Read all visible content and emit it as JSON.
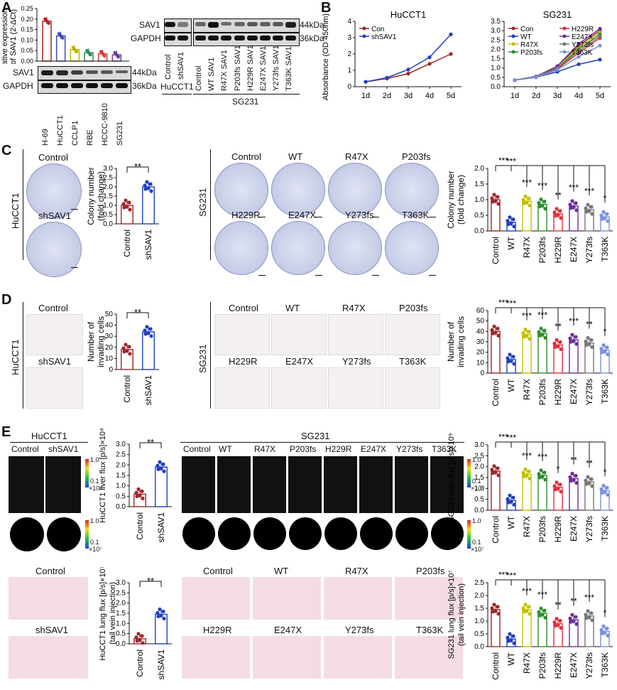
{
  "panels": {
    "A": "A",
    "B": "B",
    "C": "C",
    "D": "D",
    "E": "E"
  },
  "panelA": {
    "ylabel1": "Relative expression",
    "ylabel2": "of SAV1 (2",
    "ylabel_sup": "-ΔCt",
    "ylabel_end": ")",
    "yticks": [
      "0.00",
      "0.05",
      "0.10",
      "0.15",
      "0.20",
      "0.25"
    ],
    "cell_lines": [
      "H-69",
      "HuCCT1",
      "CCLP1",
      "RBE",
      "HCCC-9810",
      "SG231"
    ],
    "bars": [
      0.19,
      0.12,
      0.055,
      0.04,
      0.035,
      0.03
    ],
    "bar_colors": [
      "#b22222",
      "#3a4fb5",
      "#b8b800",
      "#2e8b57",
      "#d23a3a",
      "#6a3d9a"
    ],
    "blot_rows": [
      "SAV1",
      "GAPDH"
    ],
    "blot_kda": [
      "44kDa",
      "36kDa"
    ],
    "blot2_lanes_left": [
      "Control",
      "shSAV1"
    ],
    "blot2_group_left": "HuCCT1",
    "blot2_lanes_right": [
      "Control",
      "WT SAV1",
      "R47X SAV1",
      "P203fs SAV1",
      "H229R SAV1",
      "E247X SAV1",
      "Y273fs SAV1",
      "T363K SAV1"
    ],
    "blot2_group_right": "SG231"
  },
  "panelB": {
    "ylabel": "Absorbance (OD 450nm)",
    "hucct1": {
      "title": "HuCCT1",
      "x": [
        "1d",
        "2d",
        "3d",
        "4d",
        "5d"
      ],
      "yticks": [
        "0",
        "1",
        "2",
        "3",
        "4"
      ],
      "series": [
        {
          "name": "Con",
          "color": "#a0252a",
          "values": [
            0.3,
            0.5,
            0.8,
            1.4,
            2.0
          ]
        },
        {
          "name": "shSAV1",
          "color": "#1f3fbf",
          "values": [
            0.3,
            0.55,
            1.05,
            1.8,
            3.2
          ]
        }
      ]
    },
    "sg231": {
      "title": "SG231",
      "x": [
        "1d",
        "2d",
        "3d",
        "4d",
        "5d"
      ],
      "yticks": [
        "0.0",
        "0.5",
        "1.0",
        "1.5",
        "2.0",
        "2.5",
        "3.0",
        "3.5"
      ],
      "series": [
        {
          "name": "Con",
          "color": "#a0252a",
          "values": [
            0.35,
            0.55,
            1.1,
            2.2,
            3.0
          ]
        },
        {
          "name": "WT",
          "color": "#1f3fbf",
          "values": [
            0.35,
            0.5,
            0.8,
            1.2,
            1.45
          ]
        },
        {
          "name": "R47X",
          "color": "#c0c000",
          "values": [
            0.35,
            0.55,
            1.05,
            2.1,
            2.9
          ]
        },
        {
          "name": "P203fs",
          "color": "#2e8b2e",
          "values": [
            0.35,
            0.55,
            1.0,
            2.0,
            2.8
          ]
        },
        {
          "name": "H229R",
          "color": "#e0303a",
          "values": [
            0.35,
            0.55,
            0.95,
            1.8,
            2.6
          ]
        },
        {
          "name": "E247X",
          "color": "#6a2d9a",
          "values": [
            0.35,
            0.55,
            1.1,
            2.3,
            3.1
          ]
        },
        {
          "name": "Y273fs",
          "color": "#777777",
          "values": [
            0.35,
            0.55,
            1.0,
            1.9,
            2.7
          ]
        },
        {
          "name": "T363K",
          "color": "#7a8fe0",
          "values": [
            0.35,
            0.5,
            0.9,
            1.6,
            2.2
          ]
        }
      ]
    }
  },
  "panelC": {
    "hucct1_label": "HuCCT1",
    "sg231_label": "SG231",
    "dish_labels_left": [
      "Control",
      "shSAV1"
    ],
    "dish_labels_right": [
      "Control",
      "WT",
      "R47X",
      "P203fs",
      "H229R",
      "E247X",
      "Y273fs",
      "T363K"
    ],
    "ylabel1": "Colony number",
    "ylabel2": "(fold change)",
    "left_ticks": [
      "0.0",
      "0.5",
      "1.0",
      "1.5",
      "2.0",
      "2.5",
      "3.0"
    ],
    "right_ticks": [
      "0.0",
      "0.5",
      "1.0",
      "1.5",
      "2.0"
    ],
    "left_cats": [
      "Control",
      "shSAV1"
    ],
    "left_values": [
      1.0,
      2.0
    ],
    "left_sig": "**",
    "right_cats": [
      "Control",
      "WT",
      "R47X",
      "P203fs",
      "H229R",
      "E247X",
      "Y273fs",
      "T363K"
    ],
    "right_values": [
      1.0,
      0.28,
      0.95,
      0.85,
      0.55,
      0.8,
      0.68,
      0.45
    ],
    "right_sig": [
      "***",
      "***",
      "***",
      "**",
      "***",
      "***",
      "*"
    ]
  },
  "panelD": {
    "hucct1_label": "HuCCT1",
    "sg231_label": "SG231",
    "tile_labels_left": [
      "Control",
      "shSAV1"
    ],
    "tile_labels_right": [
      "Control",
      "WT",
      "R47X",
      "P203fs",
      "H229R",
      "E247X",
      "Y273fs",
      "T363K"
    ],
    "ylabel1": "Number of",
    "ylabel2": "invading cells",
    "left_ticks": [
      "0",
      "10",
      "20",
      "30",
      "40",
      "50"
    ],
    "right_ticks": [
      "0",
      "10",
      "20",
      "30",
      "40",
      "50",
      "60"
    ],
    "left_cats": [
      "Control",
      "shSAV1"
    ],
    "left_values": [
      18,
      34
    ],
    "left_sig": "**",
    "right_cats": [
      "Control",
      "WT",
      "R47X",
      "P203fs",
      "H229R",
      "E247X",
      "Y273fs",
      "T363K"
    ],
    "right_values": [
      40,
      13,
      37,
      38,
      27,
      32,
      29,
      22
    ],
    "right_sig": [
      "***",
      "***",
      "***",
      "**",
      "***",
      "**",
      "*"
    ]
  },
  "panelE": {
    "left_group": "HuCCT1",
    "left_lanes": [
      "Control",
      "shSAV1"
    ],
    "right_group": "SG231",
    "right_lanes": [
      "Control",
      "WT",
      "R47X",
      "P203fs",
      "H229R",
      "E247X",
      "Y273fs",
      "T363K"
    ],
    "scale_top": [
      "1.0",
      "0.1"
    ],
    "scale_top_unit": "×10⁸",
    "scale_bottom": [
      "1.0",
      "0.1"
    ],
    "scale_bottom_unit": "×10⁷",
    "liver_left_ylabel": "HuCCT1 liver flux [p/s]×10⁹",
    "liver_left_ticks": [
      "0.0",
      "0.5",
      "1.0",
      "1.5",
      "2.0",
      "2.5",
      "3.0"
    ],
    "liver_left_values": [
      0.6,
      1.9
    ],
    "liver_left_sig": "**",
    "liver_right_ylabel": "SG231 liver flux [p/s]×10⁹",
    "liver_right_ticks": [
      "0.0",
      "0.5",
      "1.0",
      "1.5",
      "2.0",
      "2.5",
      "3.0"
    ],
    "liver_right_values": [
      1.8,
      0.45,
      1.65,
      1.6,
      1.05,
      1.45,
      1.3,
      0.9
    ],
    "liver_right_sig": [
      "***",
      "***",
      "***",
      "*",
      "**",
      "**",
      "*"
    ],
    "histo_left_labels": [
      "Control",
      "shSAV1"
    ],
    "histo_right_labels": [
      "Control",
      "WT",
      "R47X",
      "P203fs",
      "H229R",
      "E247X",
      "Y273fs",
      "T363K"
    ],
    "lung_left_ylabel1": "HuCCT1 lung flux [p/s]×10⁷",
    "lung_left_ylabel2": "(tail vein injection)",
    "lung_left_ticks": [
      "0.0",
      "0.5",
      "1.0",
      "1.5",
      "2.0",
      "2.5",
      "3.0"
    ],
    "lung_left_values": [
      0.25,
      1.45
    ],
    "lung_left_sig": "**",
    "lung_right_ylabel1": "SG231 lung flux [p/s]×10⁷",
    "lung_right_ylabel2": "(tail vein injection)",
    "lung_right_ticks": [
      "0.0",
      "0.5",
      "1.0",
      "1.5",
      "2.0",
      "2.5"
    ],
    "lung_right_values": [
      1.45,
      0.3,
      1.45,
      1.3,
      0.9,
      1.05,
      1.2,
      0.6
    ],
    "lung_right_sig": [
      "***",
      "***",
      "***",
      "**",
      "**",
      "***",
      "*"
    ]
  },
  "chart_data": [
    {
      "type": "bar",
      "title": "",
      "categories": [
        "H-69",
        "HuCCT1",
        "CCLP1",
        "RBE",
        "HCCC-9810",
        "SG231"
      ],
      "values": [
        0.19,
        0.12,
        0.055,
        0.04,
        0.035,
        0.03
      ],
      "ylabel": "Relative expression of SAV1 (2-ΔCt)",
      "ylim": [
        0,
        0.25
      ]
    },
    {
      "type": "line",
      "title": "HuCCT1",
      "x": [
        "1d",
        "2d",
        "3d",
        "4d",
        "5d"
      ],
      "series": [
        {
          "name": "Con",
          "values": [
            0.3,
            0.5,
            0.8,
            1.4,
            2.0
          ]
        },
        {
          "name": "shSAV1",
          "values": [
            0.3,
            0.55,
            1.05,
            1.8,
            3.2
          ]
        }
      ],
      "ylabel": "Absorbance (OD 450nm)",
      "ylim": [
        0,
        4
      ]
    },
    {
      "type": "line",
      "title": "SG231",
      "x": [
        "1d",
        "2d",
        "3d",
        "4d",
        "5d"
      ],
      "series": [
        {
          "name": "Con",
          "values": [
            0.35,
            0.55,
            1.1,
            2.2,
            3.0
          ]
        },
        {
          "name": "WT",
          "values": [
            0.35,
            0.5,
            0.8,
            1.2,
            1.45
          ]
        },
        {
          "name": "R47X",
          "values": [
            0.35,
            0.55,
            1.05,
            2.1,
            2.9
          ]
        },
        {
          "name": "P203fs",
          "values": [
            0.35,
            0.55,
            1.0,
            2.0,
            2.8
          ]
        },
        {
          "name": "H229R",
          "values": [
            0.35,
            0.55,
            0.95,
            1.8,
            2.6
          ]
        },
        {
          "name": "E247X",
          "values": [
            0.35,
            0.55,
            1.1,
            2.3,
            3.1
          ]
        },
        {
          "name": "Y273fs",
          "values": [
            0.35,
            0.55,
            1.0,
            1.9,
            2.7
          ]
        },
        {
          "name": "T363K",
          "values": [
            0.35,
            0.5,
            0.9,
            1.6,
            2.2
          ]
        }
      ],
      "ylim": [
        0,
        3.5
      ]
    }
  ]
}
